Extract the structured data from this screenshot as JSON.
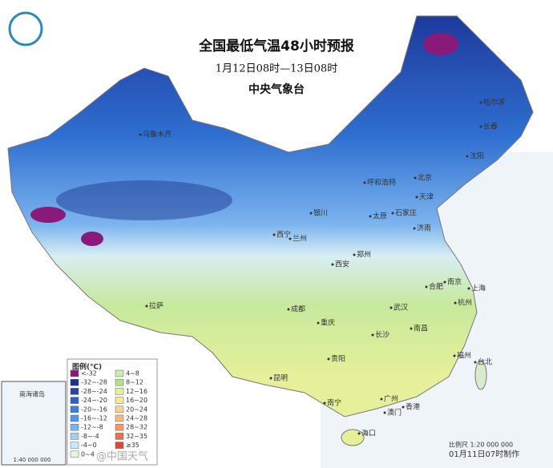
{
  "header": {
    "title": "全国最低气温48小时预报",
    "subtitle": "1月12日08时—13日08时",
    "issuer": "中央气象台"
  },
  "legend": {
    "title": "图例(℃)",
    "items": [
      {
        "label": "<-32",
        "color": "#8a1a7a"
      },
      {
        "label": "-32~-28",
        "color": "#1f2f8a"
      },
      {
        "label": "-28~-24",
        "color": "#2447a8"
      },
      {
        "label": "-24~-20",
        "color": "#2c62c4"
      },
      {
        "label": "-20~-16",
        "color": "#3a7fd8"
      },
      {
        "label": "-16~-12",
        "color": "#5597e4"
      },
      {
        "label": "-12~-8",
        "color": "#79b2ee"
      },
      {
        "label": "-8~-4",
        "color": "#a3cdf4"
      },
      {
        "label": "-4~0",
        "color": "#cfe6f8"
      },
      {
        "label": "0~4",
        "color": "#e4f5e0"
      },
      {
        "label": "4~8",
        "color": "#c9ecb0"
      },
      {
        "label": "8~12",
        "color": "#b3e28a"
      },
      {
        "label": "12~16",
        "color": "#e6f098"
      },
      {
        "label": "16~20",
        "color": "#f5e89a"
      },
      {
        "label": "20~24",
        "color": "#f7d58e"
      },
      {
        "label": "24~28",
        "color": "#f5b97a"
      },
      {
        "label": "28~32",
        "color": "#f29a68"
      },
      {
        "label": "32~35",
        "color": "#e8704f"
      },
      {
        "label": "≥35",
        "color": "#d94a3a"
      }
    ]
  },
  "cities": [
    "哈尔滨",
    "长春",
    "沈阳",
    "北京",
    "天津",
    "呼和浩特",
    "石家庄",
    "太原",
    "济南",
    "银川",
    "西宁",
    "兰州",
    "郑州",
    "西安",
    "合肥",
    "南京",
    "上海",
    "杭州",
    "武汉",
    "成都",
    "重庆",
    "长沙",
    "南昌",
    "福州",
    "台北",
    "贵阳",
    "昆明",
    "南宁",
    "广州",
    "香港",
    "澳门",
    "海口",
    "拉萨",
    "乌鲁木齐"
  ],
  "inset": {
    "title": "南海诸岛",
    "scale": "1:40 000 000"
  },
  "footer": {
    "made": "01月11日07时制作",
    "scale": "比例尺 1:20 000 000",
    "watermark": "@中国天气"
  }
}
